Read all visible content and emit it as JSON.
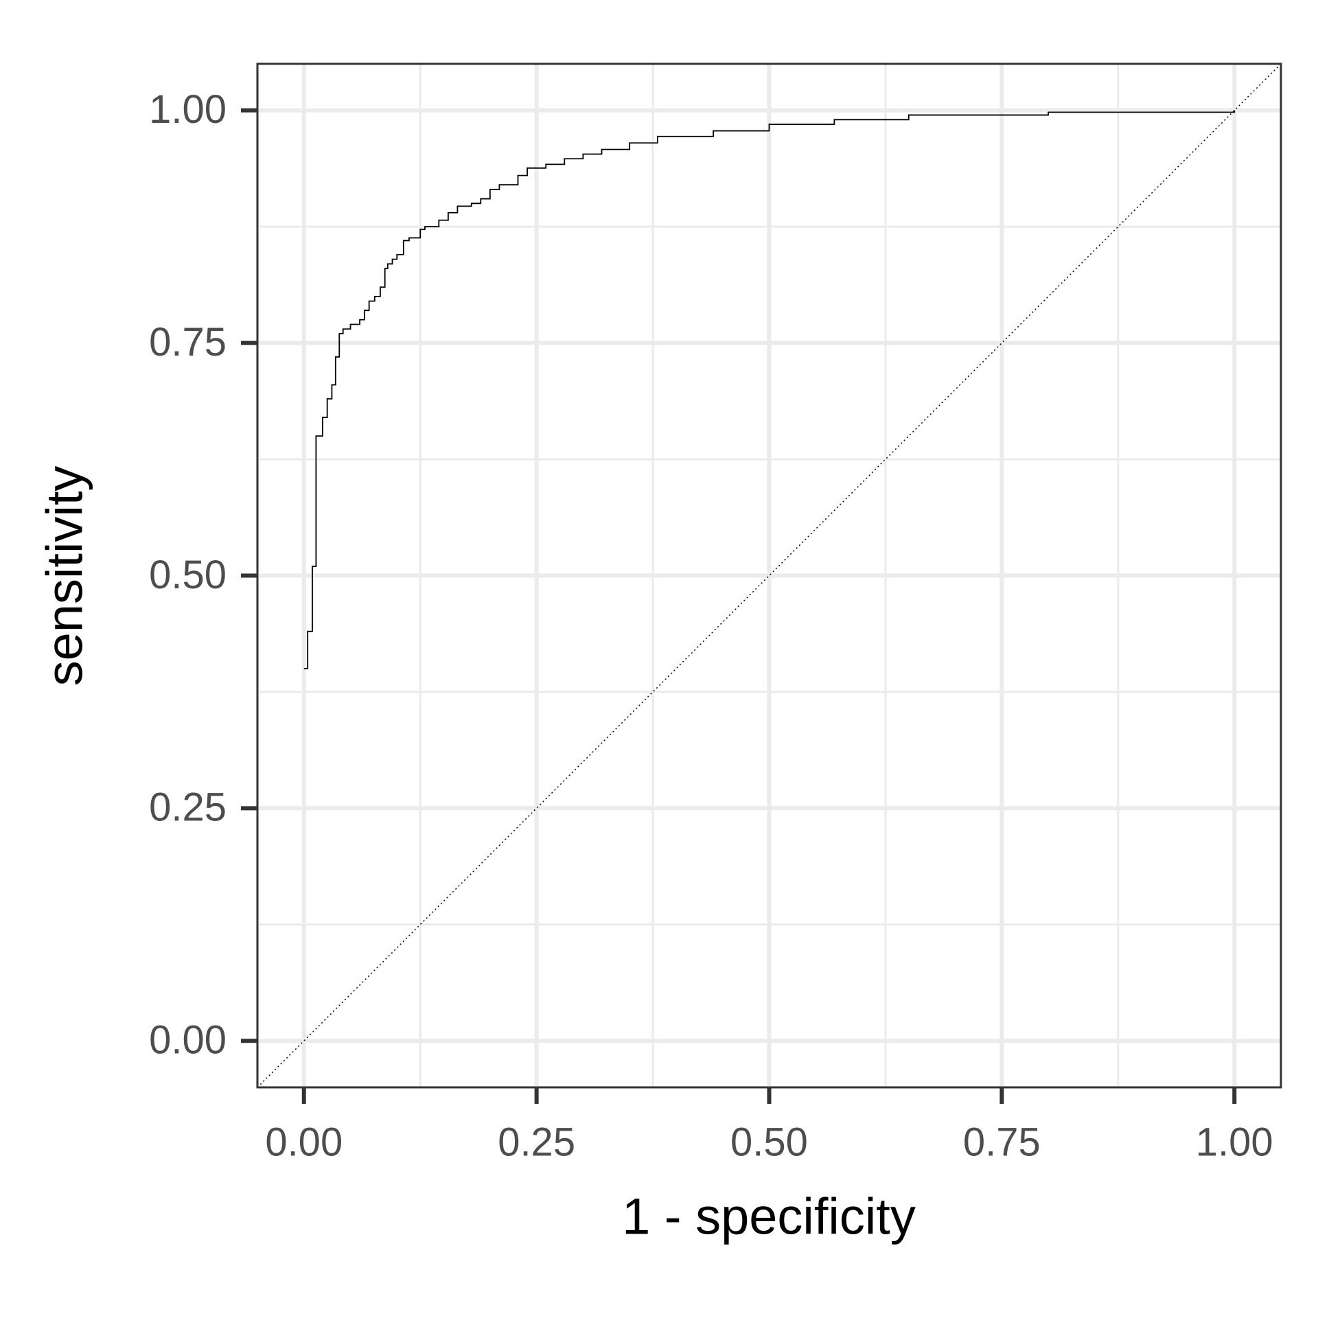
{
  "chart_data": {
    "type": "line",
    "step": true,
    "x_label": "1 - specificity",
    "y_label": "sensitivity",
    "xlim": [
      -0.05,
      1.05
    ],
    "ylim": [
      -0.05,
      1.05
    ],
    "xticks": [
      {
        "value": 0,
        "label": "0.00"
      },
      {
        "value": 0.25,
        "label": "0.25"
      },
      {
        "value": 0.5,
        "label": "0.50"
      },
      {
        "value": 0.75,
        "label": "0.75"
      },
      {
        "value": 1,
        "label": "1.00"
      }
    ],
    "yticks": [
      {
        "value": 0,
        "label": "0.00"
      },
      {
        "value": 0.25,
        "label": "0.25"
      },
      {
        "value": 0.5,
        "label": "0.50"
      },
      {
        "value": 0.75,
        "label": "0.75"
      },
      {
        "value": 1,
        "label": "1.00"
      }
    ],
    "minor_xticks": [
      0.125,
      0.375,
      0.625,
      0.875
    ],
    "minor_yticks": [
      0.125,
      0.375,
      0.625,
      0.875
    ],
    "grid": true,
    "reference_diagonal": true,
    "series": [
      {
        "color": "#000000",
        "x": [
          0,
          0.004,
          0.009,
          0.013,
          0.02,
          0.025,
          0.03,
          0.034,
          0.038,
          0.042,
          0.05,
          0.06,
          0.065,
          0.07,
          0.076,
          0.082,
          0.087,
          0.09,
          0.095,
          0.1,
          0.107,
          0.113,
          0.125,
          0.13,
          0.145,
          0.155,
          0.165,
          0.18,
          0.19,
          0.2,
          0.21,
          0.23,
          0.24,
          0.26,
          0.28,
          0.3,
          0.32,
          0.35,
          0.38,
          0.44,
          0.5,
          0.57,
          0.65,
          0.8,
          1.0
        ],
        "values": [
          0.4,
          0.44,
          0.51,
          0.65,
          0.67,
          0.69,
          0.705,
          0.735,
          0.76,
          0.765,
          0.77,
          0.775,
          0.785,
          0.795,
          0.8,
          0.81,
          0.83,
          0.835,
          0.84,
          0.845,
          0.86,
          0.863,
          0.872,
          0.875,
          0.882,
          0.89,
          0.897,
          0.9,
          0.905,
          0.915,
          0.92,
          0.93,
          0.938,
          0.942,
          0.948,
          0.953,
          0.958,
          0.965,
          0.972,
          0.978,
          0.985,
          0.99,
          0.995,
          0.998,
          1.0
        ]
      }
    ]
  }
}
